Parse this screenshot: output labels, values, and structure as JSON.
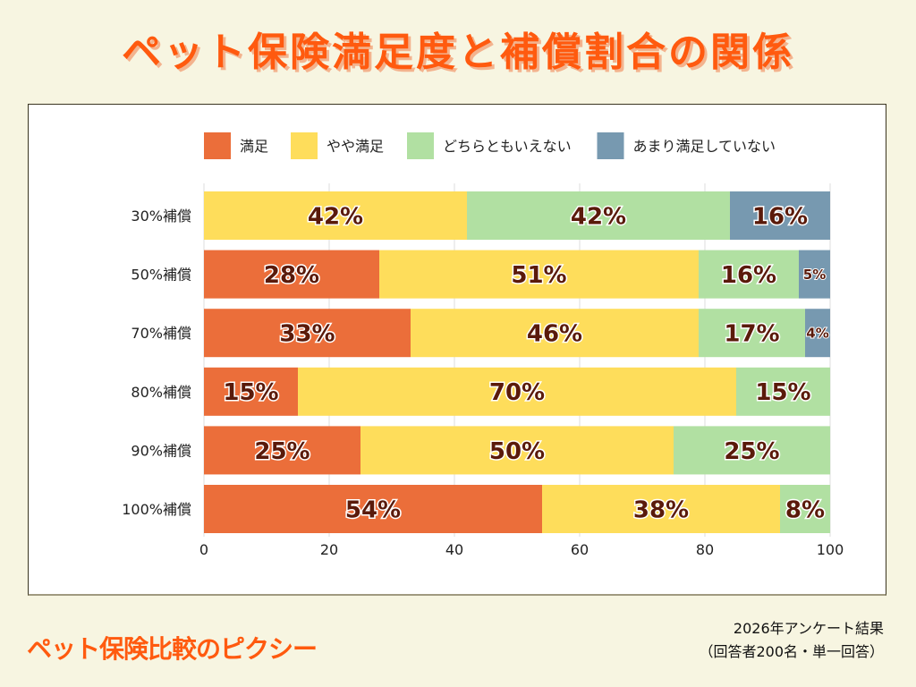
{
  "title": "ペット保険満足度と補償割合の関係",
  "footer": {
    "brand": "ペット保険比較のピクシー",
    "note_line1": "2026年アンケート結果",
    "note_line2": "（回答者200名・単一回答）"
  },
  "chart_data": {
    "type": "bar",
    "orientation": "horizontal",
    "stacked": true,
    "categories": [
      "30%補償",
      "50%補償",
      "70%補償",
      "80%補償",
      "90%補償",
      "100%補償"
    ],
    "series": [
      {
        "name": "満足",
        "color": "#eb6e3a",
        "values": [
          0,
          28,
          33,
          15,
          25,
          54
        ]
      },
      {
        "name": "やや満足",
        "color": "#fedd5b",
        "values": [
          42,
          51,
          46,
          70,
          50,
          38
        ]
      },
      {
        "name": "どちらともいえない",
        "color": "#b1e0a2",
        "values": [
          42,
          16,
          17,
          15,
          25,
          8
        ]
      },
      {
        "name": "あまり満足していない",
        "color": "#7799b0",
        "values": [
          16,
          5,
          4,
          0,
          0,
          0
        ]
      }
    ],
    "xlim": [
      0,
      100
    ],
    "xticks": [
      "0",
      "20",
      "40",
      "60",
      "80",
      "100"
    ],
    "grid": true,
    "legend_position": "top",
    "data_labels": true,
    "label_color": "#5a1a0a"
  }
}
